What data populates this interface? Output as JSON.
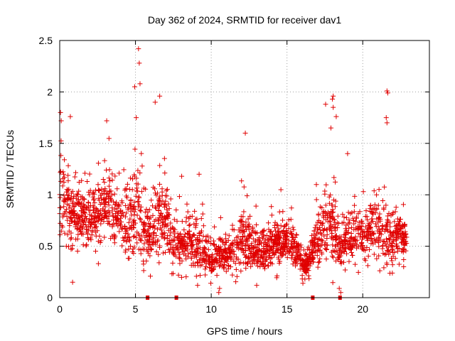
{
  "chart_data": {
    "type": "scatter",
    "title": "Day 362 of 2024, SRMTID for receiver dav1",
    "xlabel": "GPS time / hours",
    "ylabel": "SRMTID / TECUs",
    "xlim": [
      0,
      24.4
    ],
    "ylim": [
      0,
      2.5
    ],
    "x_ticks": [
      0,
      5,
      10,
      15,
      20
    ],
    "x_tick_labels": [
      "0",
      "5",
      "10",
      "15",
      "20"
    ],
    "y_ticks": [
      0,
      0.5,
      1,
      1.5,
      2,
      2.5
    ],
    "y_tick_labels": [
      "0",
      "0.5",
      "1",
      "1.5",
      "2",
      "2.5"
    ],
    "grid": true,
    "series": [
      {
        "name": "SRMTID",
        "color": "#e00000",
        "marker": "plus",
        "profile_hours": [
          0,
          0.5,
          1,
          1.5,
          2,
          2.5,
          3,
          3.5,
          4,
          4.5,
          5,
          5.5,
          6,
          6.5,
          7,
          7.5,
          8,
          8.5,
          9,
          9.5,
          10,
          10.5,
          11,
          11.5,
          12,
          12.5,
          13,
          13.5,
          14,
          14.5,
          15,
          15.5,
          16,
          16.5,
          17,
          17.5,
          18,
          18.5,
          19,
          19.5,
          20,
          20.5,
          21,
          21.5,
          22,
          22.5,
          22.9
        ],
        "profile_median": [
          0.95,
          0.85,
          0.8,
          0.78,
          0.72,
          0.8,
          0.9,
          0.85,
          0.75,
          0.7,
          0.9,
          0.65,
          0.6,
          0.85,
          0.8,
          0.5,
          0.5,
          0.55,
          0.5,
          0.45,
          0.38,
          0.42,
          0.4,
          0.45,
          0.55,
          0.5,
          0.48,
          0.45,
          0.52,
          0.55,
          0.55,
          0.5,
          0.3,
          0.35,
          0.6,
          0.65,
          0.75,
          0.45,
          0.55,
          0.6,
          0.62,
          0.65,
          0.7,
          0.6,
          0.55,
          0.6,
          0.55
        ],
        "profile_spread": [
          0.35,
          0.3,
          0.25,
          0.25,
          0.25,
          0.28,
          0.35,
          0.3,
          0.28,
          0.3,
          0.4,
          0.3,
          0.28,
          0.35,
          0.35,
          0.22,
          0.2,
          0.22,
          0.2,
          0.18,
          0.15,
          0.15,
          0.15,
          0.18,
          0.25,
          0.2,
          0.18,
          0.18,
          0.18,
          0.18,
          0.18,
          0.15,
          0.1,
          0.12,
          0.25,
          0.25,
          0.35,
          0.18,
          0.2,
          0.2,
          0.22,
          0.22,
          0.25,
          0.25,
          0.2,
          0.18,
          0.15
        ],
        "point_count": 2300,
        "outliers": [
          {
            "x": 5.2,
            "y": 2.42
          },
          {
            "x": 5.25,
            "y": 2.28
          },
          {
            "x": 5.3,
            "y": 2.08
          },
          {
            "x": 4.95,
            "y": 2.05
          },
          {
            "x": 6.6,
            "y": 1.96
          },
          {
            "x": 6.3,
            "y": 1.9
          },
          {
            "x": 5.05,
            "y": 1.75
          },
          {
            "x": 3.1,
            "y": 1.72
          },
          {
            "x": 0.05,
            "y": 1.8
          },
          {
            "x": 0.1,
            "y": 1.72
          },
          {
            "x": 0.7,
            "y": 1.76
          },
          {
            "x": 0.4,
            "y": 0.95
          },
          {
            "x": 0.85,
            "y": 0.15
          },
          {
            "x": 12.25,
            "y": 1.6
          },
          {
            "x": 18.05,
            "y": 1.96
          },
          {
            "x": 18.0,
            "y": 1.93
          },
          {
            "x": 18.05,
            "y": 1.85
          },
          {
            "x": 17.55,
            "y": 1.88
          },
          {
            "x": 18.25,
            "y": 1.76
          },
          {
            "x": 21.6,
            "y": 2.01
          },
          {
            "x": 21.65,
            "y": 1.99
          },
          {
            "x": 21.55,
            "y": 1.75
          },
          {
            "x": 21.6,
            "y": 1.7
          },
          {
            "x": 19.0,
            "y": 1.4
          },
          {
            "x": 17.9,
            "y": 1.65
          },
          {
            "x": 10.5,
            "y": 0.05
          },
          {
            "x": 10.55,
            "y": 0.09
          },
          {
            "x": 9.1,
            "y": 0.12
          },
          {
            "x": 13.0,
            "y": 0.12
          },
          {
            "x": 18.55,
            "y": 0.05
          },
          {
            "x": 18.45,
            "y": 0.09
          },
          {
            "x": 16.05,
            "y": 0.14
          },
          {
            "x": 8.05,
            "y": 1.18
          },
          {
            "x": 9.2,
            "y": 1.2
          },
          {
            "x": 14.6,
            "y": 1.05
          },
          {
            "x": 22.7,
            "y": 0.3
          }
        ]
      }
    ],
    "axis_markers": [
      {
        "x": 5.8,
        "y": 0
      },
      {
        "x": 7.7,
        "y": 0
      },
      {
        "x": 16.7,
        "y": 0
      },
      {
        "x": 18.5,
        "y": 0
      }
    ]
  }
}
